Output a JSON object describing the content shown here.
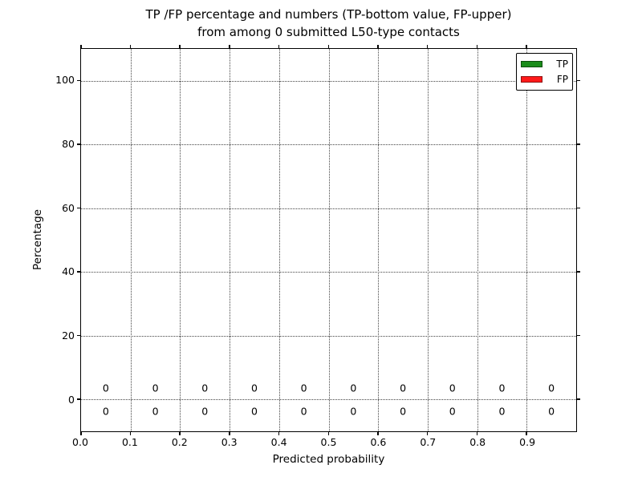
{
  "figure": {
    "title_line1": "TP /FP percentage and numbers (TP-bottom value, FP-upper)",
    "title_line2": "from among 0 submitted L50-type contacts",
    "xlabel": "Predicted probability",
    "ylabel": "Percentage"
  },
  "legend": {
    "position": "upper right",
    "entries": [
      {
        "label": "TP",
        "color": "#1a8c1a"
      },
      {
        "label": "FP",
        "color": "#ff1a1a"
      }
    ]
  },
  "chart_data": {
    "type": "bar",
    "title": "TP /FP percentage and numbers (TP-bottom value, FP-upper) from among 0 submitted L50-type contacts",
    "xlabel": "Predicted probability",
    "ylabel": "Percentage",
    "xlim": [
      0.0,
      1.0
    ],
    "ylim": [
      -10,
      110
    ],
    "grid": true,
    "grid_style": "dotted",
    "legend_position": "upper right",
    "xticks": [
      0.0,
      0.1,
      0.2,
      0.3,
      0.4,
      0.5,
      0.6,
      0.7,
      0.8,
      0.9
    ],
    "xtick_labels": [
      "0.0",
      "0.1",
      "0.2",
      "0.3",
      "0.4",
      "0.5",
      "0.6",
      "0.7",
      "0.8",
      "0.9"
    ],
    "yticks": [
      0,
      20,
      40,
      60,
      80,
      100
    ],
    "ytick_labels": [
      "0",
      "20",
      "40",
      "60",
      "80",
      "100"
    ],
    "categories": [
      0.05,
      0.15,
      0.25,
      0.35,
      0.45,
      0.55,
      0.65,
      0.75,
      0.85,
      0.95
    ],
    "series": [
      {
        "name": "TP",
        "color": "#1a8c1a",
        "values": [
          0,
          0,
          0,
          0,
          0,
          0,
          0,
          0,
          0,
          0
        ]
      },
      {
        "name": "FP",
        "color": "#ff1a1a",
        "values": [
          0,
          0,
          0,
          0,
          0,
          0,
          0,
          0,
          0,
          0
        ]
      }
    ],
    "annotation_rows": [
      {
        "name": "fp-count",
        "y": 3.6,
        "labels": [
          "0",
          "0",
          "0",
          "0",
          "0",
          "0",
          "0",
          "0",
          "0",
          "0"
        ]
      },
      {
        "name": "tp-count",
        "y": -3.6,
        "labels": [
          "0",
          "0",
          "0",
          "0",
          "0",
          "0",
          "0",
          "0",
          "0",
          "0"
        ]
      }
    ]
  }
}
